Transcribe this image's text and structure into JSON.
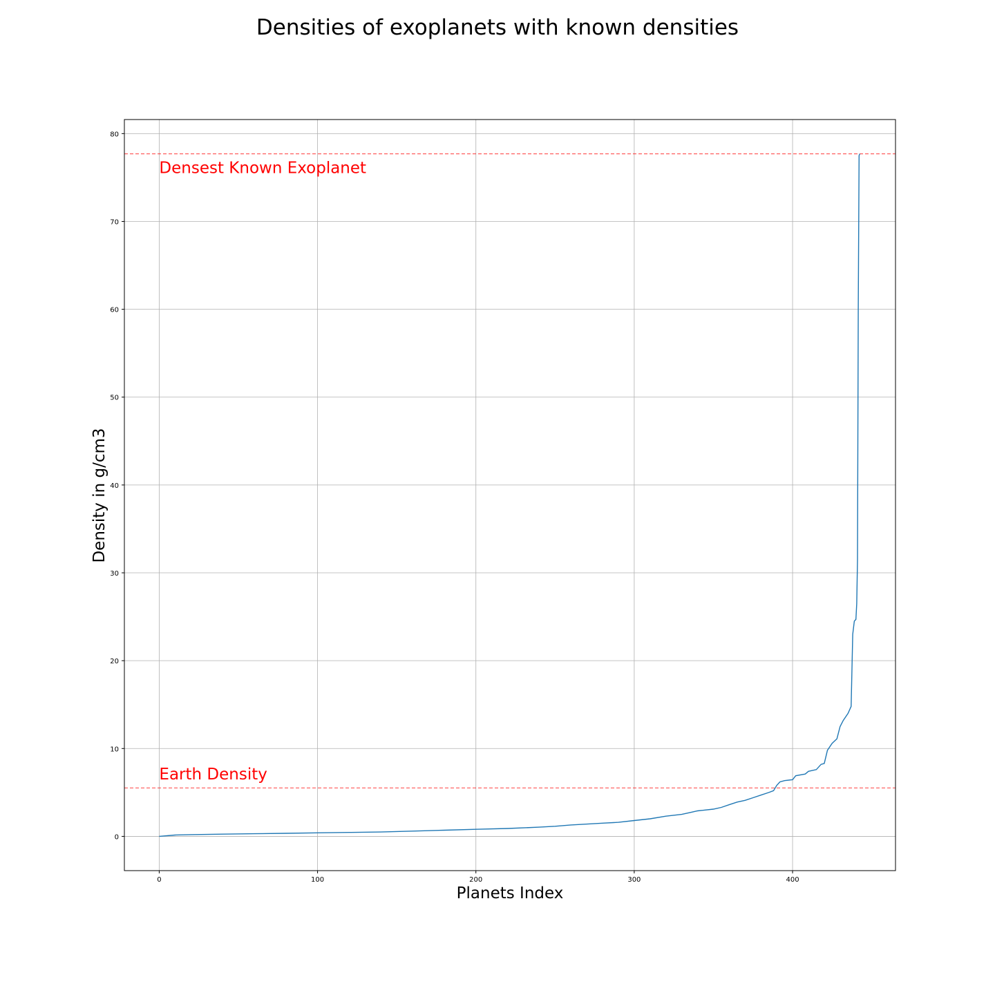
{
  "chart_data": {
    "type": "line",
    "title": "Densities of exoplanets with known densities",
    "xlabel": "Planets Index",
    "ylabel": "Density in g/cm3",
    "xlim": [
      -22,
      465
    ],
    "ylim": [
      -3.9,
      81.6
    ],
    "xticks": [
      0,
      100,
      200,
      300,
      400
    ],
    "yticks": [
      0,
      10,
      20,
      30,
      40,
      50,
      60,
      70,
      80
    ],
    "grid": true,
    "line_color": "#1f77b4",
    "reference_color": "#ff0000",
    "series": [
      {
        "x": [
          0,
          10,
          20,
          40,
          60,
          80,
          100,
          120,
          140,
          160,
          180,
          200,
          220,
          240,
          250,
          260,
          280,
          290,
          300,
          310,
          320,
          330,
          335,
          340,
          350,
          355,
          360,
          365,
          370,
          375,
          380,
          385,
          388,
          390,
          392,
          395,
          400,
          402,
          408,
          410,
          415,
          418,
          420,
          422,
          425,
          428,
          430,
          432,
          435,
          437,
          438,
          439,
          440,
          440.5,
          441,
          441.5,
          442,
          442.5
        ],
        "y": [
          0.0,
          0.15,
          0.2,
          0.25,
          0.3,
          0.35,
          0.4,
          0.45,
          0.5,
          0.6,
          0.7,
          0.8,
          0.9,
          1.05,
          1.15,
          1.3,
          1.5,
          1.6,
          1.8,
          2.0,
          2.3,
          2.5,
          2.7,
          2.9,
          3.1,
          3.3,
          3.6,
          3.9,
          4.1,
          4.4,
          4.7,
          5.0,
          5.2,
          5.8,
          6.2,
          6.35,
          6.45,
          6.9,
          7.1,
          7.4,
          7.6,
          8.2,
          8.3,
          9.8,
          10.6,
          11.1,
          12.5,
          13.2,
          14.0,
          14.8,
          23.0,
          24.5,
          24.7,
          26.5,
          31.5,
          60.0,
          77.5,
          77.7
        ]
      }
    ],
    "reference_lines": [
      {
        "y": 77.7,
        "text": "Densest Known Exoplanet",
        "text_x": 0,
        "text_y": 75.5
      },
      {
        "y": 5.51,
        "text": "Earth Density",
        "text_x": 0,
        "text_y": 6.5
      }
    ]
  }
}
